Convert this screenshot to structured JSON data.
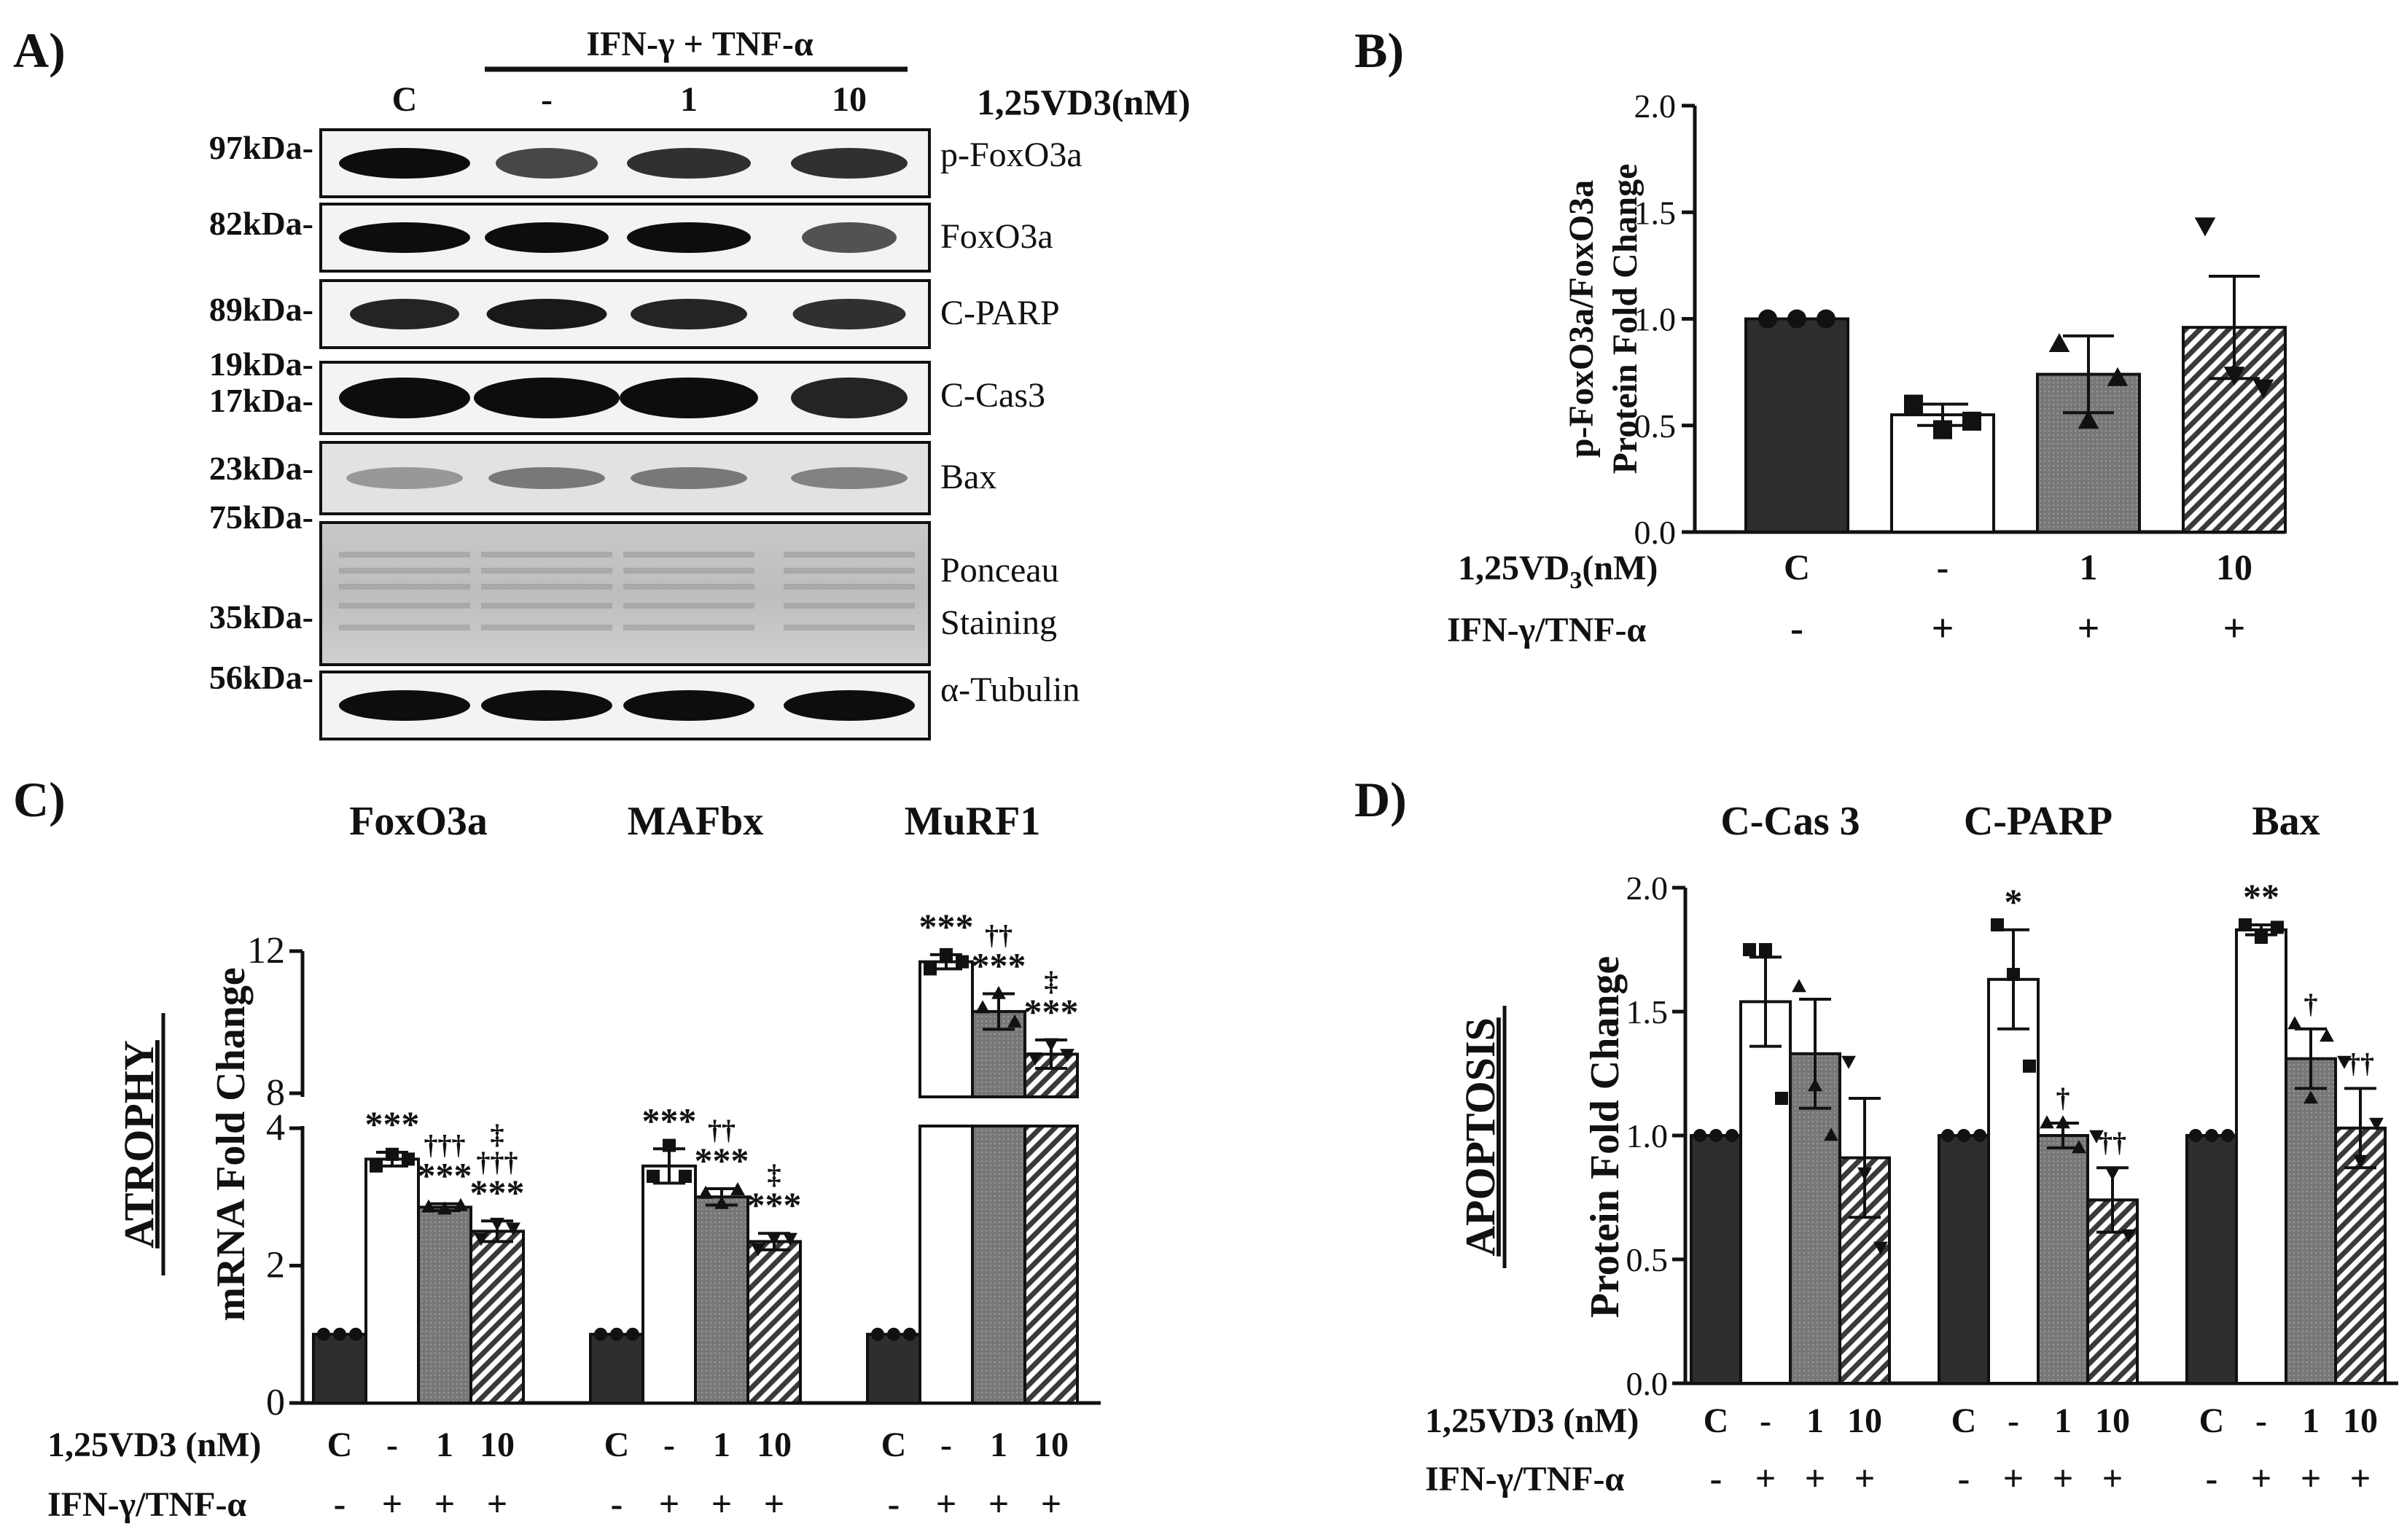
{
  "panel_labels": {
    "a": "A)",
    "b": "B)",
    "c": "C)",
    "d": "D)"
  },
  "panel_a": {
    "treatment_header": "IFN-γ + TNF-α",
    "lanes": [
      "C",
      "-",
      "1",
      "10"
    ],
    "dose_label": "1,25VD3(nM)",
    "blots": [
      {
        "label": "p-FoxO3a",
        "kda": [
          "97kDa-"
        ]
      },
      {
        "label": "FoxO3a",
        "kda": [
          "82kDa-"
        ]
      },
      {
        "label": "C-PARP",
        "kda": [
          "89kDa-"
        ]
      },
      {
        "label": "C-Cas3",
        "kda": [
          "19kDa-",
          "17kDa-"
        ]
      },
      {
        "label": "Bax",
        "kda": [
          "23kDa-"
        ]
      },
      {
        "label": "Ponceau",
        "label2": "Staining",
        "kda": [
          "75kDa-",
          "35kDa-"
        ]
      },
      {
        "label": "α-Tubulin",
        "kda": [
          "56kDa-"
        ]
      }
    ]
  },
  "chart_data": [
    {
      "id": "B",
      "type": "bar",
      "ylabel": "p-FoxO3a/FoxO3a",
      "ylabel2": "Protein Fold Change",
      "ylim": [
        0,
        2.0
      ],
      "yticks": [
        "0.0",
        "0.5",
        "1.0",
        "1.5",
        "2.0"
      ],
      "categories": [
        "C",
        "-",
        "1",
        "10"
      ],
      "values": [
        1.0,
        0.55,
        0.74,
        0.96
      ],
      "errors": [
        0.0,
        0.05,
        0.18,
        0.24
      ],
      "points": [
        [
          1.0,
          1.0,
          1.0
        ],
        [
          0.6,
          0.48,
          0.52
        ],
        [
          0.88,
          0.52,
          0.72
        ],
        [
          1.44,
          0.74,
          0.68
        ]
      ],
      "row1_label": "1,25VD",
      "row1_sub": "3",
      "row1_tail": "(nM)",
      "row2_label": "IFN-γ/TNF-α",
      "row2": [
        "-",
        "+",
        "+",
        "+"
      ]
    },
    {
      "id": "C",
      "type": "bar",
      "section_label": "ATROPHY",
      "ylabel": "mRNA Fold Change",
      "yticks_low": [
        "0",
        "2",
        "4"
      ],
      "yticks_high": [
        "8",
        "12"
      ],
      "groups": [
        {
          "name": "FoxO3a",
          "values": [
            1.0,
            3.55,
            2.85,
            2.5
          ],
          "errors": [
            0,
            0.1,
            0.05,
            0.15
          ],
          "points": [
            [
              1,
              1,
              1
            ],
            [
              3.45,
              3.62,
              3.55
            ],
            [
              2.85,
              2.82,
              2.87
            ],
            [
              2.4,
              2.62,
              2.55
            ]
          ],
          "stats": [
            [],
            [
              "***"
            ],
            [
              "†††",
              "***"
            ],
            [
              "‡",
              "†††",
              "***"
            ]
          ]
        },
        {
          "name": "MAFbx",
          "values": [
            1.0,
            3.45,
            3.0,
            2.35
          ],
          "errors": [
            0,
            0.25,
            0.12,
            0.12
          ],
          "points": [
            [
              1,
              1,
              1
            ],
            [
              3.3,
              3.75,
              3.3
            ],
            [
              3.05,
              2.9,
              3.1
            ],
            [
              2.25,
              2.4,
              2.4
            ]
          ],
          "stats": [
            [],
            [
              "***"
            ],
            [
              "††",
              "***"
            ],
            [
              "‡",
              "***"
            ]
          ]
        },
        {
          "name": "MuRF1",
          "values": [
            1.0,
            11.7,
            10.3,
            9.1
          ],
          "errors": [
            0,
            0.2,
            0.5,
            0.4
          ],
          "points": [
            [
              1,
              1,
              1
            ],
            [
              11.5,
              11.9,
              11.7
            ],
            [
              10.4,
              10.8,
              10.0
            ],
            [
              9.0,
              9.4,
              9.1
            ]
          ],
          "stats": [
            [],
            [
              "***"
            ],
            [
              "††",
              "***"
            ],
            [
              "‡",
              "***"
            ]
          ]
        }
      ],
      "categories": [
        "C",
        "-",
        "1",
        "10"
      ],
      "row1_label": "1,25VD3 (nM)",
      "row2_label": "IFN-γ/TNF-α",
      "row2": [
        "-",
        "+",
        "+",
        "+"
      ]
    },
    {
      "id": "D",
      "type": "bar",
      "section_label": "APOPTOSIS",
      "ylabel": "Protein Fold Change",
      "ylim": [
        0,
        2.0
      ],
      "yticks": [
        "0.0",
        "0.5",
        "1.0",
        "1.5",
        "2.0"
      ],
      "groups": [
        {
          "name": "C-Cas 3",
          "values": [
            1.0,
            1.54,
            1.33,
            0.91
          ],
          "errors": [
            0,
            0.18,
            0.22,
            0.24
          ],
          "points": [
            [
              1,
              1,
              1
            ],
            [
              1.75,
              1.75,
              1.15
            ],
            [
              1.6,
              1.2,
              1.0
            ],
            [
              1.3,
              0.85,
              0.55
            ]
          ],
          "stats": [
            [],
            [],
            [],
            []
          ]
        },
        {
          "name": "C-PARP",
          "values": [
            1.0,
            1.63,
            1.0,
            0.74
          ],
          "errors": [
            0,
            0.2,
            0.05,
            0.13
          ],
          "points": [
            [
              1,
              1,
              1
            ],
            [
              1.85,
              1.65,
              1.28
            ],
            [
              1.05,
              1.05,
              0.95
            ],
            [
              1.0,
              0.85,
              0.6
            ]
          ],
          "stats": [
            [],
            [
              "*"
            ],
            [
              "†"
            ],
            [
              "††"
            ]
          ]
        },
        {
          "name": "Bax",
          "values": [
            1.0,
            1.83,
            1.31,
            1.03
          ],
          "errors": [
            0,
            0.02,
            0.12,
            0.16
          ],
          "points": [
            [
              1,
              1,
              1
            ],
            [
              1.85,
              1.8,
              1.84
            ],
            [
              1.45,
              1.15,
              1.4
            ],
            [
              1.3,
              0.9,
              1.05
            ]
          ],
          "stats": [
            [],
            [
              "**"
            ],
            [
              "†"
            ],
            [
              "††"
            ]
          ]
        }
      ],
      "categories": [
        "C",
        "-",
        "1",
        "10"
      ],
      "row1_label": "1,25VD3 (nM)",
      "row2_label": "IFN-γ/TNF-α",
      "row2": [
        "-",
        "+",
        "+",
        "+"
      ]
    }
  ]
}
